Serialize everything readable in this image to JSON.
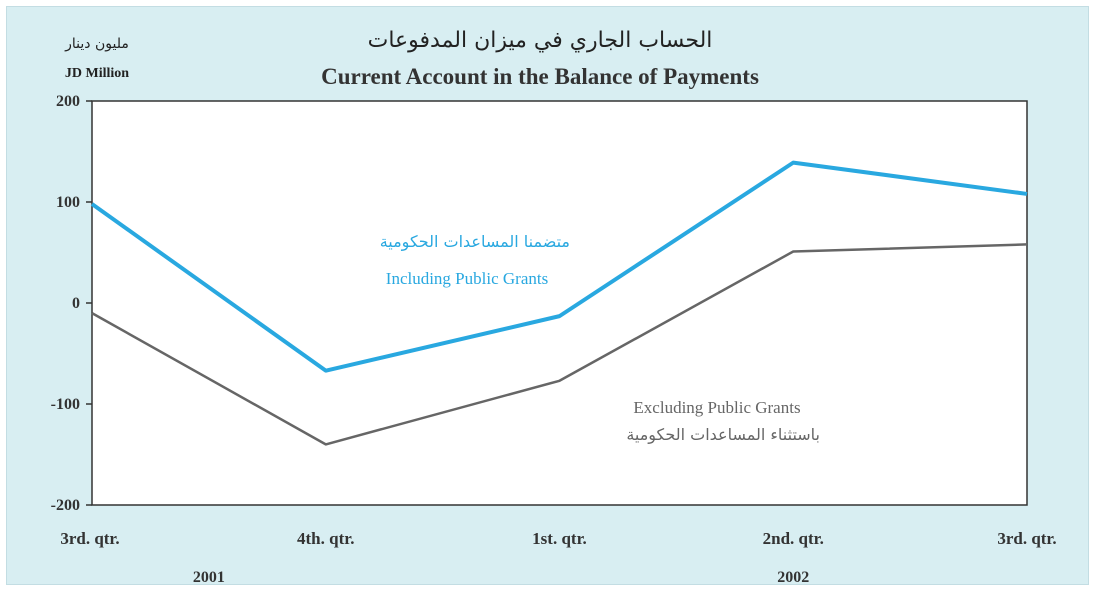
{
  "chart_data": {
    "type": "line",
    "title_ar": "الحساب الجاري في ميزان المدفوعات",
    "title": "Current Account in the Balance of Payments",
    "ylabel_ar": "مليون دينار",
    "ylabel": "JD Million",
    "ylim": [
      -200,
      200
    ],
    "yticks": [
      "200",
      "100",
      "0",
      "-100",
      "-200"
    ],
    "categories": [
      "3rd. qtr.",
      "4th. qtr.",
      "1st. qtr.",
      "2nd. qtr.",
      "3rd. qtr."
    ],
    "years": [
      {
        "label": "2001",
        "between": [
          0,
          1
        ]
      },
      {
        "label": "2002",
        "between": [
          2,
          4
        ]
      }
    ],
    "grid": false,
    "series": [
      {
        "name": "Including Public Grants",
        "name_ar": "متضمنا المساعدات الحكومية",
        "color": "#29a8e0",
        "values": [
          98,
          -67,
          -13,
          139,
          108
        ]
      },
      {
        "name": "Excluding Public Grants",
        "name_ar": "باستثناء المساعدات الحكومية",
        "color": "#666666",
        "values": [
          -10,
          -140,
          -77,
          51,
          58
        ]
      }
    ]
  }
}
